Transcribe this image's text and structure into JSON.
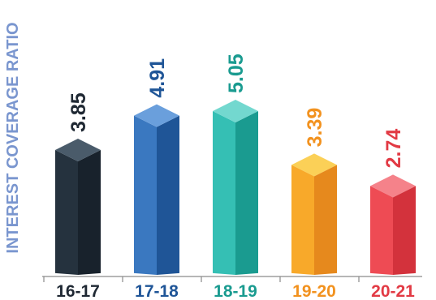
{
  "chart_data": {
    "type": "bar",
    "title": "",
    "xlabel": "",
    "ylabel": "INTEREST COVERAGE RATIO",
    "ylim": [
      0,
      5.6
    ],
    "grid": false,
    "categories": [
      "16-17",
      "17-18",
      "18-19",
      "19-20",
      "20-21"
    ],
    "values": [
      3.85,
      4.91,
      5.05,
      3.39,
      2.74
    ],
    "value_labels": [
      "3.85",
      "4.91",
      "5.05",
      "3.39",
      "2.74"
    ],
    "colors": {
      "ylabel": "#7a96cf",
      "axis": "#8a8a8a",
      "bars": [
        {
          "front": "#25323e",
          "side": "#18222c",
          "top": "#4a5b6a",
          "label": "#1f2833"
        },
        {
          "front": "#3a78c0",
          "side": "#1f5597",
          "top": "#6a9fdc",
          "label": "#1f5597"
        },
        {
          "front": "#35bfb4",
          "side": "#1a9b90",
          "top": "#73d8cf",
          "label": "#1a9b90"
        },
        {
          "front": "#f8a92a",
          "side": "#e6891d",
          "top": "#fbd057",
          "label": "#f2921f"
        },
        {
          "front": "#ee4b54",
          "side": "#d3323c",
          "top": "#f5828a",
          "label": "#e23a44"
        }
      ]
    }
  }
}
